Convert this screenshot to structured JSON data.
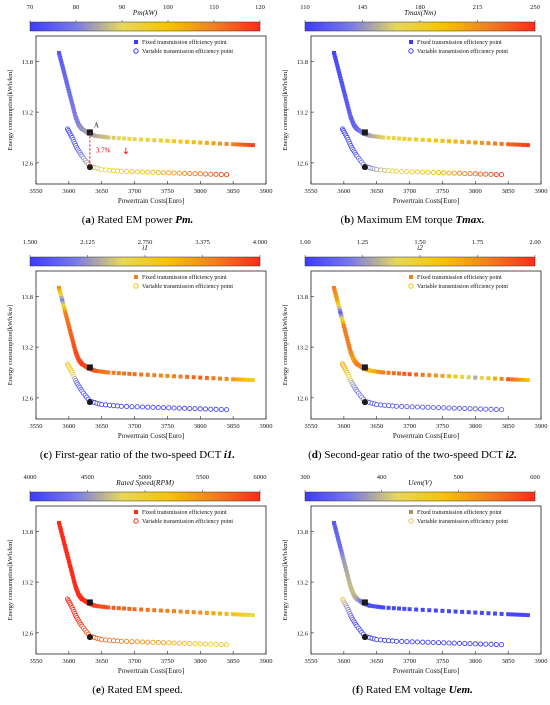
{
  "colors": {
    "cmap": [
      "#3b3bff",
      "#7b7be8",
      "#e6d85a",
      "#f6c400",
      "#f08020",
      "#ff2a1a"
    ],
    "fixed_black_marker": "#1a1a1a"
  },
  "chart_data": [
    {
      "type": "scatter",
      "panel_letter": "a",
      "caption": "Rated EM power",
      "caption_symbol": "Pm.",
      "colorbar": {
        "title": "Pm(kW)",
        "ticks": [
          "70",
          "80",
          "90",
          "100",
          "110",
          "120"
        ],
        "min": 70,
        "max": 120
      },
      "xlabel": "Powertrain Costs[Euro]",
      "ylabel": "Energy consumption[kWh/km]",
      "xlim": [
        3550,
        3900
      ],
      "ylim": [
        12.35,
        14.1
      ],
      "xticks": [
        "3550",
        "3600",
        "3650",
        "3700",
        "3750",
        "3800",
        "3850",
        "3900"
      ],
      "yticks": [
        "12.6",
        "13.2",
        "13.8"
      ],
      "legend": [
        "Fixed transmission efficiency point",
        "Variable transmission efficiency point"
      ],
      "legend_marker_colors": [
        "#3b3bff",
        "#3b3bff"
      ],
      "annotations": {
        "point_label": "A",
        "percent": "3.7%"
      },
      "fixed": {
        "x": [
          3585,
          3590,
          3595,
          3600,
          3605,
          3610,
          3615,
          3620,
          3630,
          3640,
          3660,
          3700,
          3750,
          3800,
          3850,
          3880
        ],
        "y": [
          13.9,
          13.75,
          13.6,
          13.45,
          13.3,
          13.15,
          13.05,
          13.0,
          12.95,
          12.92,
          12.9,
          12.88,
          12.86,
          12.84,
          12.82,
          12.81
        ],
        "c": [
          75,
          76,
          77,
          78,
          79,
          80,
          81,
          83,
          84,
          85,
          88,
          92,
          96,
          102,
          110,
          118
        ]
      },
      "variable": {
        "x": [
          3598,
          3605,
          3612,
          3620,
          3632,
          3650,
          3680,
          3720,
          3760,
          3800,
          3840
        ],
        "y": [
          13.0,
          12.9,
          12.78,
          12.68,
          12.56,
          12.52,
          12.5,
          12.49,
          12.48,
          12.47,
          12.46
        ],
        "c": [
          72,
          74,
          76,
          80,
          86,
          90,
          96,
          100,
          106,
          112,
          118
        ]
      }
    },
    {
      "type": "scatter",
      "panel_letter": "b",
      "caption": "Maximum EM torque",
      "caption_symbol": "Tmax.",
      "colorbar": {
        "title": "Tmax(Nm)",
        "ticks": [
          "110",
          "145",
          "180",
          "215",
          "250"
        ],
        "min": 110,
        "max": 250
      },
      "xlabel": "Powertrain Costs[Euro]",
      "ylabel": "Energy consumption[kWh/km]",
      "xlim": [
        3550,
        3900
      ],
      "ylim": [
        12.35,
        14.1
      ],
      "xticks": [
        "3550",
        "3600",
        "3650",
        "3700",
        "3750",
        "3800",
        "3850",
        "3900"
      ],
      "yticks": [
        "12.6",
        "13.2",
        "13.8"
      ],
      "legend": [
        "Fixed transmission efficiency point",
        "Variable transmission efficiency point"
      ],
      "legend_marker_colors": [
        "#3b3bff",
        "#3b3bff"
      ],
      "fixed": {
        "x": [
          3585,
          3590,
          3595,
          3600,
          3605,
          3610,
          3615,
          3620,
          3630,
          3640,
          3660,
          3700,
          3750,
          3800,
          3850,
          3880
        ],
        "y": [
          13.9,
          13.75,
          13.6,
          13.45,
          13.3,
          13.15,
          13.05,
          13.0,
          12.95,
          12.92,
          12.9,
          12.88,
          12.86,
          12.84,
          12.82,
          12.81
        ],
        "c": [
          115,
          118,
          120,
          122,
          124,
          126,
          128,
          130,
          140,
          150,
          165,
          180,
          195,
          210,
          230,
          245
        ]
      },
      "variable": {
        "x": [
          3598,
          3605,
          3612,
          3620,
          3632,
          3650,
          3680,
          3720,
          3760,
          3800,
          3840
        ],
        "y": [
          13.0,
          12.9,
          12.78,
          12.68,
          12.56,
          12.52,
          12.5,
          12.49,
          12.48,
          12.47,
          12.46
        ],
        "c": [
          112,
          116,
          120,
          125,
          135,
          150,
          170,
          190,
          210,
          230,
          248
        ]
      }
    },
    {
      "type": "scatter",
      "panel_letter": "c",
      "caption": "First-gear ratio of the two-speed DCT",
      "caption_symbol": "i1.",
      "colorbar": {
        "title": "i1",
        "ticks": [
          "1.500",
          "2.125",
          "2.750",
          "3.375",
          "4.000"
        ],
        "min": 1.5,
        "max": 4.0
      },
      "xlabel": "Powertrain Costs[Euro]",
      "ylabel": "Energy consumption[kWh/kw]",
      "xlim": [
        3550,
        3900
      ],
      "ylim": [
        12.35,
        14.1
      ],
      "xticks": [
        "3550",
        "3600",
        "3650",
        "3700",
        "3750",
        "3800",
        "3850",
        "3900"
      ],
      "yticks": [
        "12.6",
        "13.2",
        "13.8"
      ],
      "legend": [
        "Fixed transmission efficiency point",
        "Variable transmission efficiency point"
      ],
      "legend_marker_colors": [
        "#f08020",
        "#f6c400"
      ],
      "fixed": {
        "x": [
          3585,
          3590,
          3595,
          3600,
          3605,
          3610,
          3615,
          3620,
          3630,
          3640,
          3660,
          3700,
          3750,
          3800,
          3850,
          3880
        ],
        "y": [
          13.9,
          13.75,
          13.6,
          13.45,
          13.3,
          13.15,
          13.05,
          13.0,
          12.95,
          12.92,
          12.9,
          12.88,
          12.86,
          12.84,
          12.82,
          12.81
        ],
        "c": [
          3.4,
          2.0,
          3.5,
          3.6,
          3.7,
          3.8,
          3.8,
          3.9,
          3.8,
          3.7,
          3.5,
          3.6,
          3.4,
          3.7,
          3.3,
          2.8
        ]
      },
      "variable": {
        "x": [
          3598,
          3605,
          3612,
          3620,
          3632,
          3650,
          3680,
          3720,
          3760,
          3800,
          3840
        ],
        "y": [
          13.0,
          12.9,
          12.78,
          12.68,
          12.56,
          12.52,
          12.5,
          12.49,
          12.48,
          12.47,
          12.46
        ],
        "c": [
          2.9,
          2.8,
          1.9,
          1.8,
          1.6,
          1.6,
          1.6,
          1.6,
          1.6,
          1.6,
          1.6
        ]
      }
    },
    {
      "type": "scatter",
      "panel_letter": "d",
      "caption": "Second-gear ratio of the two-speed DCT",
      "caption_symbol": "i2.",
      "colorbar": {
        "title": "i2",
        "ticks": [
          "1.00",
          "1.25",
          "1.50",
          "1.75",
          "2.00"
        ],
        "min": 1.0,
        "max": 2.0
      },
      "xlabel": "Powertrain Costs[Euro]",
      "ylabel": "Energy consumption[kWh/kw]",
      "xlim": [
        3550,
        3900
      ],
      "ylim": [
        12.35,
        14.1
      ],
      "xticks": [
        "3550",
        "3600",
        "3650",
        "3700",
        "3750",
        "3800",
        "3850",
        "3900"
      ],
      "yticks": [
        "12.6",
        "13.2",
        "13.8"
      ],
      "legend": [
        "Fixed transmission efficiency point",
        "Variable transmission efficiency point"
      ],
      "legend_marker_colors": [
        "#f08020",
        "#f6c400"
      ],
      "fixed": {
        "x": [
          3585,
          3590,
          3595,
          3600,
          3605,
          3610,
          3615,
          3620,
          3630,
          3640,
          3660,
          3700,
          3750,
          3800,
          3850,
          3880
        ],
        "y": [
          13.9,
          13.75,
          13.6,
          13.45,
          13.3,
          13.15,
          13.05,
          13.0,
          12.95,
          12.92,
          12.9,
          12.88,
          12.86,
          12.84,
          12.82,
          12.81
        ],
        "c": [
          1.8,
          1.7,
          1.1,
          1.8,
          1.8,
          1.8,
          1.7,
          1.8,
          1.8,
          1.6,
          1.8,
          1.9,
          1.7,
          1.3,
          1.9,
          1.6
        ]
      },
      "variable": {
        "x": [
          3598,
          3605,
          3612,
          3620,
          3632,
          3650,
          3680,
          3720,
          3760,
          3800,
          3840
        ],
        "y": [
          13.0,
          12.9,
          12.78,
          12.68,
          12.56,
          12.52,
          12.5,
          12.49,
          12.48,
          12.47,
          12.46
        ],
        "c": [
          1.7,
          1.6,
          1.3,
          1.2,
          1.2,
          1.1,
          1.1,
          1.1,
          1.1,
          1.1,
          1.1
        ]
      }
    },
    {
      "type": "scatter",
      "panel_letter": "e",
      "caption": "Rated EM speed.",
      "caption_symbol": "",
      "colorbar": {
        "title": "Rated Speed(RPM)",
        "ticks": [
          "4000",
          "4500",
          "5000",
          "5500",
          "6000"
        ],
        "min": 4000,
        "max": 6000
      },
      "xlabel": "Powertrain Costs[Euro]",
      "ylabel": "Energy consumption[kWh/km]",
      "xlim": [
        3550,
        3900
      ],
      "ylim": [
        12.35,
        14.1
      ],
      "xticks": [
        "3550",
        "3600",
        "3650",
        "3700",
        "3750",
        "3800",
        "3850",
        "3900"
      ],
      "yticks": [
        "12.6",
        "13.2",
        "13.8"
      ],
      "legend": [
        "Fixed transmission efficiency point",
        "Variable transmission efficiency point"
      ],
      "legend_marker_colors": [
        "#ff2a1a",
        "#ff2a1a"
      ],
      "fixed": {
        "x": [
          3585,
          3590,
          3595,
          3600,
          3605,
          3610,
          3615,
          3620,
          3630,
          3640,
          3660,
          3700,
          3750,
          3800,
          3850,
          3880
        ],
        "y": [
          13.9,
          13.75,
          13.6,
          13.45,
          13.3,
          13.15,
          13.05,
          13.0,
          12.95,
          12.92,
          12.9,
          12.88,
          12.86,
          12.84,
          12.82,
          12.81
        ],
        "c": [
          6000,
          6000,
          6000,
          6000,
          6000,
          6000,
          6000,
          6000,
          5950,
          5900,
          5800,
          5700,
          5600,
          5500,
          5200,
          4800
        ]
      },
      "variable": {
        "x": [
          3598,
          3605,
          3612,
          3620,
          3632,
          3650,
          3680,
          3720,
          3760,
          3800,
          3840
        ],
        "y": [
          13.0,
          12.9,
          12.78,
          12.68,
          12.56,
          12.52,
          12.5,
          12.49,
          12.48,
          12.47,
          12.46
        ],
        "c": [
          6000,
          6000,
          6000,
          5900,
          5800,
          5700,
          5600,
          5500,
          5300,
          5100,
          5000
        ]
      }
    },
    {
      "type": "scatter",
      "panel_letter": "f",
      "caption": "Rated EM voltage",
      "caption_symbol": "Uem.",
      "colorbar": {
        "title": "Uem(V)",
        "ticks": [
          "300",
          "400",
          "500",
          "600"
        ],
        "min": 300,
        "max": 600
      },
      "xlabel": "Powertrain Costs[Euro]",
      "ylabel": "Energy consumption[kWh/km]",
      "xlim": [
        3550,
        3900
      ],
      "ylim": [
        12.35,
        14.1
      ],
      "xticks": [
        "3550",
        "3600",
        "3650",
        "3700",
        "3750",
        "3800",
        "3850",
        "3900"
      ],
      "yticks": [
        "12.6",
        "13.2",
        "13.8"
      ],
      "legend": [
        "Fixed transmission efficiency point",
        "Variable transmission efficiency point"
      ],
      "legend_marker_colors": [
        "#b09060",
        "#e6c060"
      ],
      "fixed": {
        "x": [
          3585,
          3590,
          3595,
          3600,
          3605,
          3610,
          3615,
          3620,
          3630,
          3640,
          3660,
          3700,
          3750,
          3800,
          3850,
          3880
        ],
        "y": [
          13.9,
          13.75,
          13.6,
          13.45,
          13.3,
          13.15,
          13.05,
          13.0,
          12.95,
          12.92,
          12.9,
          12.88,
          12.86,
          12.84,
          12.82,
          12.81
        ],
        "c": [
          330,
          340,
          350,
          380,
          390,
          400,
          400,
          390,
          340,
          320,
          310,
          310,
          310,
          310,
          310,
          310
        ]
      },
      "variable": {
        "x": [
          3598,
          3605,
          3612,
          3620,
          3632,
          3650,
          3680,
          3720,
          3760,
          3800,
          3840
        ],
        "y": [
          13.0,
          12.9,
          12.78,
          12.68,
          12.56,
          12.52,
          12.5,
          12.49,
          12.48,
          12.47,
          12.46
        ],
        "c": [
          420,
          380,
          340,
          320,
          310,
          305,
          305,
          305,
          305,
          305,
          305
        ]
      }
    }
  ]
}
